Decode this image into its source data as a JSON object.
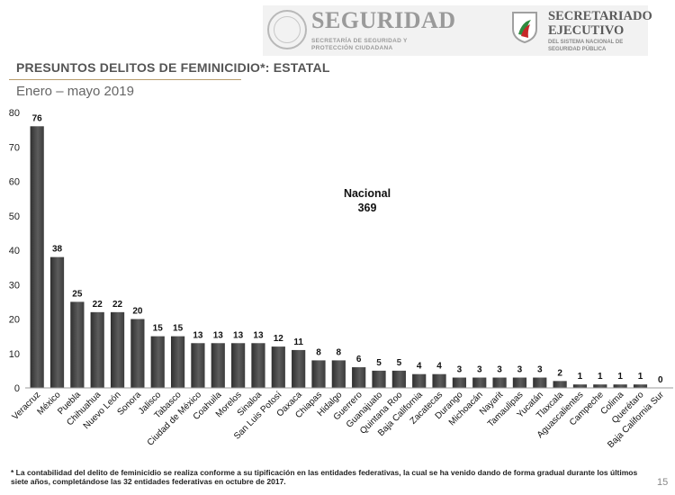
{
  "header": {
    "seguridad_title": "SEGURIDAD",
    "seguridad_subtitle": "SECRETARÍA DE SEGURIDAD Y PROTECCIÓN CIUDADANA",
    "secretariado_title": "SECRETARIADO EJECUTIVO",
    "secretariado_subtitle": "DEL SISTEMA NACIONAL DE SEGURIDAD PÚBLICA"
  },
  "title": "PRESUNTOS DELITOS DE FEMINICIDIO*: ESTATAL",
  "subtitle": "Enero – mayo 2019",
  "annotation": {
    "label": "Nacional",
    "value": "369"
  },
  "footnote": "* La contabilidad del delito de feminicidio se realiza conforme a su tipificación en las entidades federativas, la cual se ha venido dando de forma gradual durante los últimos siete años, completándose las 32 entidades federativas en octubre de 2017.",
  "page_number": "15",
  "colors": {
    "bar_dark": "#3a3a3a",
    "bar_light": "#6b6b6b",
    "rule": "#b89b6a"
  },
  "chart_data": {
    "type": "bar",
    "categories": [
      "Veracruz",
      "México",
      "Puebla",
      "Chihuahua",
      "Nuevo León",
      "Sonora",
      "Jalisco",
      "Tabasco",
      "Ciudad de México",
      "Coahuila",
      "Morelos",
      "Sinaloa",
      "San Luis Potosí",
      "Oaxaca",
      "Chiapas",
      "Hidalgo",
      "Guerrero",
      "Guanajuato",
      "Quintana Roo",
      "Baja California",
      "Zacatecas",
      "Durango",
      "Michoacán",
      "Nayarit",
      "Tamaulipas",
      "Yucatán",
      "Tlaxcala",
      "Aguascalientes",
      "Campeche",
      "Colima",
      "Querétaro",
      "Baja California Sur"
    ],
    "values": [
      76,
      38,
      25,
      22,
      22,
      20,
      15,
      15,
      13,
      13,
      13,
      13,
      12,
      11,
      8,
      8,
      6,
      5,
      5,
      4,
      4,
      3,
      3,
      3,
      3,
      3,
      2,
      1,
      1,
      1,
      1,
      0
    ],
    "ylim": [
      0,
      80
    ],
    "yticks": [
      0,
      10,
      20,
      30,
      40,
      50,
      60,
      70,
      80
    ],
    "grid": false,
    "legend": "none"
  }
}
